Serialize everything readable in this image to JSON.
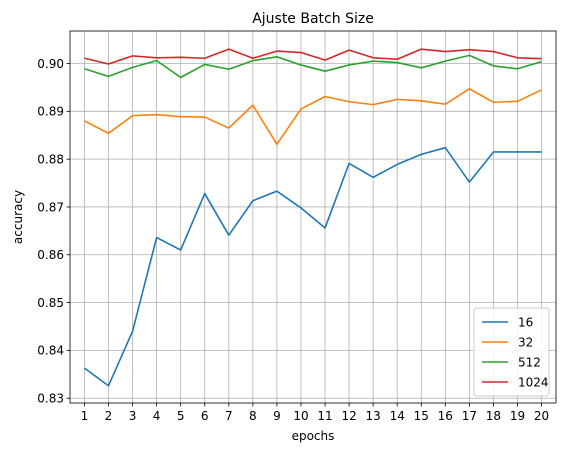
{
  "chart_data": {
    "type": "line",
    "title": "Ajuste Batch Size",
    "xlabel": "epochs",
    "ylabel": "accuracy",
    "x": [
      1,
      2,
      3,
      4,
      5,
      6,
      7,
      8,
      9,
      10,
      11,
      12,
      13,
      14,
      15,
      16,
      17,
      18,
      19,
      20
    ],
    "xlim": [
      0.4,
      20.6
    ],
    "ylim": [
      0.829,
      0.9068
    ],
    "yticks": [
      0.83,
      0.84,
      0.85,
      0.86,
      0.87,
      0.88,
      0.89,
      0.9
    ],
    "ytick_labels": [
      "0.83",
      "0.84",
      "0.85",
      "0.86",
      "0.87",
      "0.88",
      "0.89",
      "0.90"
    ],
    "xtick_labels": [
      "1",
      "2",
      "3",
      "4",
      "5",
      "6",
      "7",
      "8",
      "9",
      "10",
      "11",
      "12",
      "13",
      "14",
      "15",
      "16",
      "17",
      "18",
      "19",
      "20"
    ],
    "grid": true,
    "legend_position": "bottom-right",
    "series": [
      {
        "name": "16",
        "color": "#1f77b4",
        "values": [
          0.8363,
          0.8326,
          0.844,
          0.8636,
          0.861,
          0.8728,
          0.8641,
          0.8713,
          0.8733,
          0.8698,
          0.8656,
          0.8791,
          0.8762,
          0.8789,
          0.881,
          0.8824,
          0.8752,
          0.8815,
          0.8815,
          0.8815
        ]
      },
      {
        "name": "32",
        "color": "#ff7f0e",
        "values": [
          0.888,
          0.8854,
          0.8891,
          0.8893,
          0.8889,
          0.8888,
          0.8865,
          0.8913,
          0.8831,
          0.8905,
          0.8931,
          0.892,
          0.8914,
          0.8925,
          0.8922,
          0.8915,
          0.8947,
          0.8919,
          0.8921,
          0.8945
        ]
      },
      {
        "name": "512",
        "color": "#2ca02c",
        "values": [
          0.8989,
          0.8973,
          0.8992,
          0.9006,
          0.8971,
          0.8998,
          0.8988,
          0.9006,
          0.9014,
          0.8997,
          0.8984,
          0.8997,
          0.9005,
          0.9002,
          0.8991,
          0.9005,
          0.9017,
          0.8995,
          0.8989,
          0.9004
        ]
      },
      {
        "name": "1024",
        "color": "#d62728",
        "values": [
          0.9011,
          0.8999,
          0.9016,
          0.9012,
          0.9013,
          0.9011,
          0.903,
          0.9011,
          0.9026,
          0.9023,
          0.9007,
          0.9028,
          0.9012,
          0.9009,
          0.903,
          0.9025,
          0.9029,
          0.9025,
          0.9012,
          0.901
        ]
      }
    ]
  }
}
